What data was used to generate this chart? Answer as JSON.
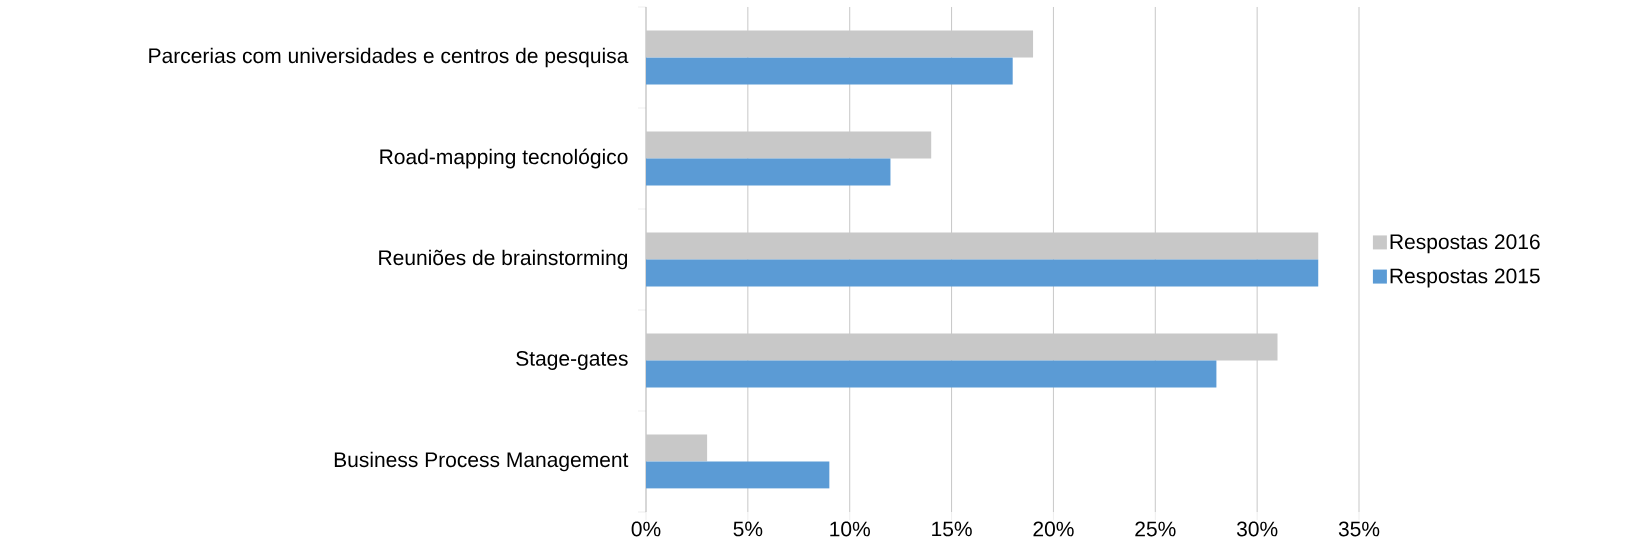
{
  "chart_data": {
    "type": "bar",
    "orientation": "horizontal",
    "categories": [
      "Parcerias com universidades e centros de pesquisa",
      "Road-mapping tecnológico",
      "Reuniões de brainstorming",
      "Stage-gates",
      "Business Process Management"
    ],
    "series": [
      {
        "name": "Respostas 2016",
        "color": "#c8c8c8",
        "values": [
          19,
          14,
          33,
          31,
          3
        ]
      },
      {
        "name": "Respostas 2015",
        "color": "#5b9bd5",
        "values": [
          18,
          12,
          33,
          28,
          9
        ]
      }
    ],
    "xlim": [
      0,
      35
    ],
    "xticks": [
      {
        "value": 0,
        "label": "0%"
      },
      {
        "value": 5,
        "label": "5%"
      },
      {
        "value": 10,
        "label": "10%"
      },
      {
        "value": 15,
        "label": "15%"
      },
      {
        "value": 20,
        "label": "20%"
      },
      {
        "value": 25,
        "label": "25%"
      },
      {
        "value": 30,
        "label": "30%"
      },
      {
        "value": 35,
        "label": "35%"
      }
    ],
    "grid": "x",
    "legend": "right"
  }
}
